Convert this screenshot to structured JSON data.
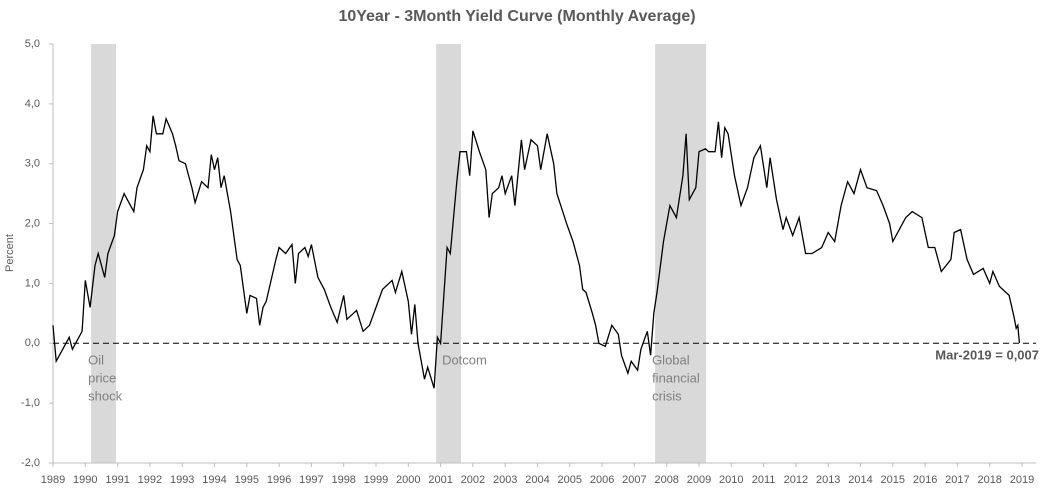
{
  "chart_data": {
    "type": "line",
    "title": "10Year -  3Month Yield Curve (Monthly Average)",
    "ylabel": "Percent",
    "annotation": "Mar-2019 = 0,007",
    "xlim": [
      1989,
      2019
    ],
    "xticks": [
      1989,
      1990,
      1991,
      1992,
      1993,
      1994,
      1995,
      1996,
      1997,
      1998,
      1999,
      2000,
      2001,
      2002,
      2003,
      2004,
      2005,
      2006,
      2007,
      2008,
      2009,
      2010,
      2011,
      2012,
      2013,
      2014,
      2015,
      2016,
      2017,
      2018,
      2019
    ],
    "ylim": [
      -2,
      5
    ],
    "yticks": [
      {
        "value": -2,
        "label": "-2,0"
      },
      {
        "value": -1,
        "label": "-1,0"
      },
      {
        "value": 0,
        "label": "0,0"
      },
      {
        "value": 1,
        "label": "1,0"
      },
      {
        "value": 2,
        "label": "2,0"
      },
      {
        "value": 3,
        "label": "3,0"
      },
      {
        "value": 4,
        "label": "4,0"
      },
      {
        "value": 5,
        "label": "5,0"
      }
    ],
    "reference_line": 0,
    "shade_color": "#d9d9d9",
    "shades": [
      {
        "start": 1990.18,
        "end": 1990.95,
        "label": [
          "Oil",
          "price",
          "shock"
        ]
      },
      {
        "start": 2000.86,
        "end": 2001.63,
        "label": [
          "Dotcom"
        ]
      },
      {
        "start": 2007.64,
        "end": 2009.22,
        "label": [
          "Global",
          "financial",
          "crisis"
        ]
      }
    ],
    "series": [
      {
        "name": "10Year - 3Month",
        "color": "#000000",
        "x": [
          1989.0,
          1989.1,
          1989.3,
          1989.5,
          1989.6,
          1989.9,
          1990.0,
          1990.15,
          1990.3,
          1990.4,
          1990.6,
          1990.7,
          1990.9,
          1991.0,
          1991.2,
          1991.4,
          1991.5,
          1991.6,
          1991.8,
          1991.9,
          1992.0,
          1992.1,
          1992.2,
          1992.4,
          1992.5,
          1992.7,
          1992.8,
          1992.9,
          1993.1,
          1993.3,
          1993.4,
          1993.6,
          1993.8,
          1993.9,
          1994.0,
          1994.1,
          1994.2,
          1994.3,
          1994.5,
          1994.7,
          1994.8,
          1995.0,
          1995.1,
          1995.3,
          1995.4,
          1995.5,
          1995.6,
          1995.9,
          1996.0,
          1996.2,
          1996.4,
          1996.5,
          1996.6,
          1996.8,
          1996.9,
          1997.0,
          1997.2,
          1997.4,
          1997.6,
          1997.8,
          1998.0,
          1998.1,
          1998.4,
          1998.6,
          1998.8,
          1999.0,
          1999.2,
          1999.5,
          1999.6,
          1999.8,
          2000.0,
          2000.1,
          2000.2,
          2000.3,
          2000.5,
          2000.6,
          2000.8,
          2000.9,
          2001.0,
          2001.2,
          2001.3,
          2001.5,
          2001.6,
          2001.8,
          2001.9,
          2002.0,
          2002.2,
          2002.4,
          2002.5,
          2002.6,
          2002.8,
          2002.9,
          2003.0,
          2003.2,
          2003.3,
          2003.5,
          2003.6,
          2003.8,
          2004.0,
          2004.1,
          2004.3,
          2004.5,
          2004.6,
          2004.9,
          2005.1,
          2005.3,
          2005.4,
          2005.5,
          2005.7,
          2005.8,
          2005.9,
          2006.1,
          2006.3,
          2006.5,
          2006.6,
          2006.8,
          2006.9,
          2007.1,
          2007.2,
          2007.4,
          2007.5,
          2007.6,
          2007.7,
          2007.9,
          2008.1,
          2008.3,
          2008.5,
          2008.6,
          2008.7,
          2008.9,
          2009.0,
          2009.2,
          2009.3,
          2009.5,
          2009.6,
          2009.7,
          2009.8,
          2009.9,
          2010.1,
          2010.3,
          2010.5,
          2010.7,
          2010.9,
          2011.1,
          2011.2,
          2011.4,
          2011.6,
          2011.7,
          2011.9,
          2012.1,
          2012.3,
          2012.5,
          2012.8,
          2013.0,
          2013.2,
          2013.4,
          2013.6,
          2013.8,
          2014.0,
          2014.2,
          2014.5,
          2014.7,
          2014.9,
          2015.0,
          2015.2,
          2015.4,
          2015.6,
          2015.9,
          2016.1,
          2016.3,
          2016.5,
          2016.8,
          2016.9,
          2017.1,
          2017.3,
          2017.5,
          2017.8,
          2018.0,
          2018.1,
          2018.3,
          2018.6,
          2018.75,
          2018.82,
          2018.87,
          2018.92
        ],
        "values": [
          0.3,
          -0.3,
          -0.1,
          0.1,
          -0.1,
          0.2,
          1.05,
          0.6,
          1.3,
          1.5,
          1.1,
          1.5,
          1.8,
          2.2,
          2.5,
          2.3,
          2.2,
          2.6,
          2.9,
          3.3,
          3.2,
          3.8,
          3.5,
          3.5,
          3.75,
          3.5,
          3.3,
          3.05,
          3.0,
          2.6,
          2.35,
          2.7,
          2.6,
          3.15,
          2.9,
          3.1,
          2.6,
          2.8,
          2.2,
          1.4,
          1.3,
          0.5,
          0.8,
          0.75,
          0.3,
          0.6,
          0.7,
          1.4,
          1.6,
          1.5,
          1.65,
          1.0,
          1.5,
          1.6,
          1.45,
          1.65,
          1.1,
          0.9,
          0.6,
          0.35,
          0.8,
          0.4,
          0.55,
          0.2,
          0.3,
          0.6,
          0.9,
          1.05,
          0.85,
          1.2,
          0.7,
          0.15,
          0.65,
          0.0,
          -0.6,
          -0.4,
          -0.75,
          0.1,
          0.0,
          1.6,
          1.5,
          2.7,
          3.2,
          3.2,
          2.8,
          3.55,
          3.2,
          2.9,
          2.1,
          2.5,
          2.6,
          2.8,
          2.5,
          2.8,
          2.3,
          3.4,
          2.9,
          3.4,
          3.3,
          2.9,
          3.5,
          3.0,
          2.5,
          2.0,
          1.7,
          1.3,
          0.9,
          0.85,
          0.5,
          0.3,
          0.0,
          -0.05,
          0.3,
          0.15,
          -0.2,
          -0.5,
          -0.3,
          -0.45,
          -0.1,
          0.2,
          -0.2,
          0.5,
          0.85,
          1.7,
          2.3,
          2.1,
          2.8,
          3.5,
          2.4,
          2.6,
          3.2,
          3.25,
          3.2,
          3.2,
          3.7,
          3.1,
          3.6,
          3.5,
          2.8,
          2.3,
          2.6,
          3.1,
          3.3,
          2.6,
          3.1,
          2.4,
          1.9,
          2.1,
          1.8,
          2.1,
          1.5,
          1.5,
          1.6,
          1.85,
          1.7,
          2.3,
          2.7,
          2.5,
          2.9,
          2.6,
          2.55,
          2.3,
          2.0,
          1.7,
          1.9,
          2.1,
          2.2,
          2.1,
          1.6,
          1.6,
          1.2,
          1.4,
          1.85,
          1.9,
          1.4,
          1.15,
          1.25,
          1.0,
          1.2,
          0.95,
          0.8,
          0.45,
          0.25,
          0.3,
          0.007
        ]
      }
    ]
  }
}
